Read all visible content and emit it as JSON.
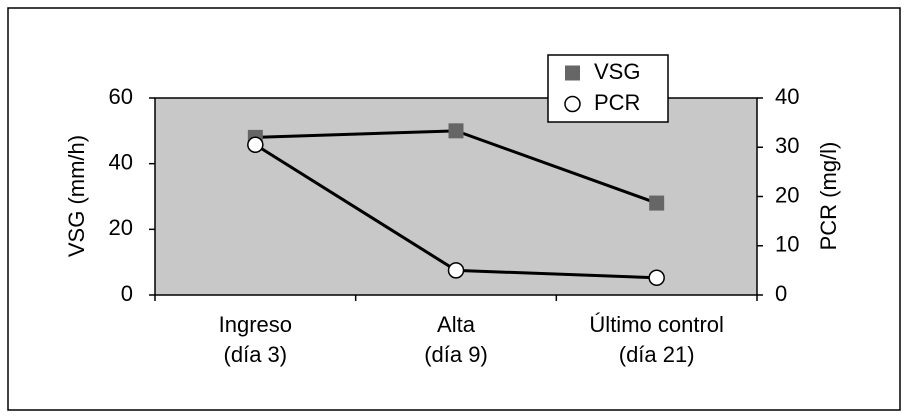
{
  "chart_data": {
    "type": "line",
    "categories": [
      [
        "Ingreso",
        "(día 3)"
      ],
      [
        "Alta",
        "(día 9)"
      ],
      [
        "Último control",
        "(día 21)"
      ]
    ],
    "y_label": "VSG (mm/h)",
    "y2_label": "PCR (mg/l)",
    "series": [
      {
        "name": "VSG",
        "color": "#666666",
        "marker": "square",
        "values": [
          48,
          50,
          28
        ]
      },
      {
        "name": "PCR",
        "color": "#ffffff",
        "marker": "circle",
        "axis": "y2",
        "values": [
          30.5,
          5,
          3.5
        ]
      }
    ],
    "ylim": [
      0,
      60
    ],
    "yticks": [
      0,
      20,
      40,
      60
    ],
    "y2lim": [
      0,
      40
    ],
    "y2ticks": [
      0,
      10,
      20,
      30,
      40
    ],
    "plot_background": "#c8c8c8",
    "line_color": "#000000",
    "grid": false,
    "legend": "top-right"
  }
}
